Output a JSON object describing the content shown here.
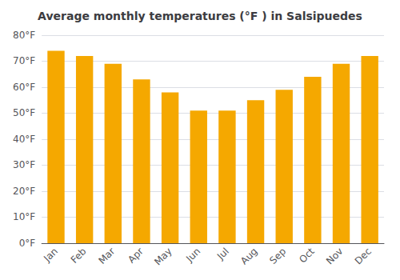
{
  "chart_data": {
    "type": "bar",
    "title": "Average monthly temperatures (°F ) in Salsipuedes",
    "categories": [
      "Jan",
      "Feb",
      "Mar",
      "Apr",
      "May",
      "Jun",
      "Jul",
      "Aug",
      "Sep",
      "Oct",
      "Nov",
      "Dec"
    ],
    "values": [
      74,
      72,
      69,
      63,
      58,
      51,
      51,
      55,
      59,
      64,
      69,
      72
    ],
    "color": "#F5A800",
    "ylim": [
      0,
      80
    ],
    "yticks": [
      {
        "value": 0,
        "label": "0°F"
      },
      {
        "value": 10,
        "label": "10°F"
      },
      {
        "value": 20,
        "label": "20°F"
      },
      {
        "value": 30,
        "label": "30°F"
      },
      {
        "value": 40,
        "label": "40°F"
      },
      {
        "value": 50,
        "label": "50°F"
      },
      {
        "value": 60,
        "label": "60°F"
      },
      {
        "value": 70,
        "label": "70°F"
      },
      {
        "value": 80,
        "label": "80°F"
      }
    ],
    "grid": true
  }
}
